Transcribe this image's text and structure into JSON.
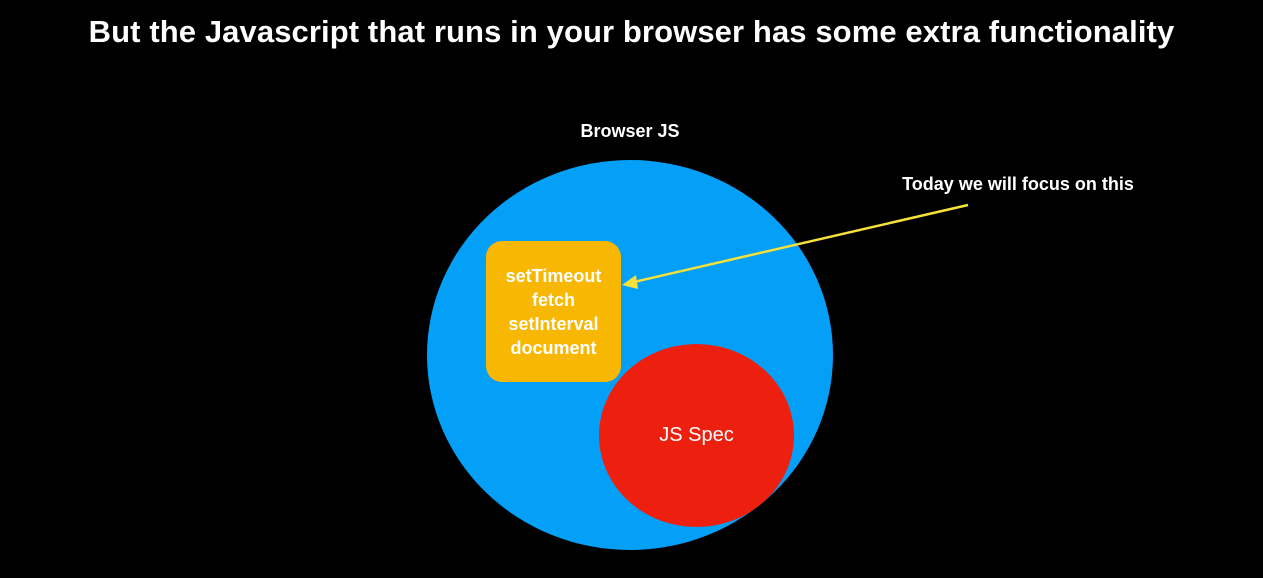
{
  "title": "But the Javascript that runs in your browser has some extra functionality",
  "outer_set": {
    "label": "Browser JS",
    "color": "#049ff7"
  },
  "api_box": {
    "items": [
      "setTimeout",
      "fetch",
      "setInterval",
      "document"
    ],
    "color": "#f8b702"
  },
  "inner_set": {
    "label": "JS Spec",
    "color": "#ed2010"
  },
  "callout": {
    "text": "Today we will focus on this",
    "arrow_color": "#f5e13a"
  },
  "background_color": "#000000"
}
